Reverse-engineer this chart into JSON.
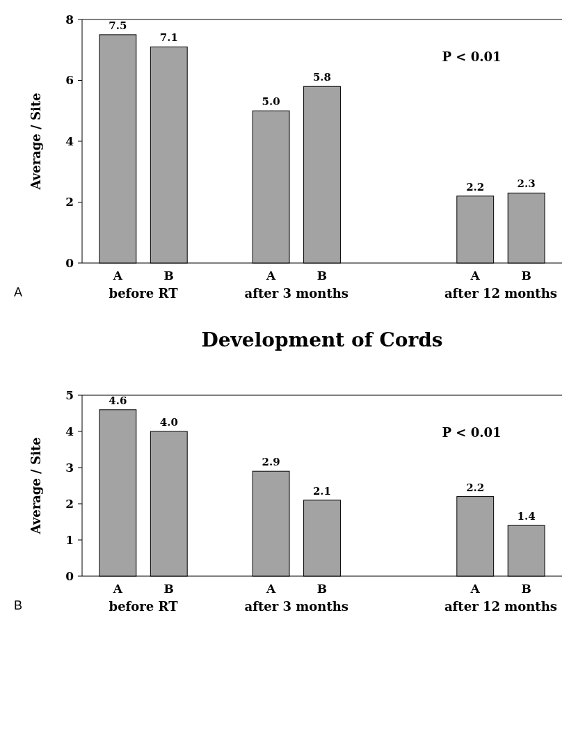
{
  "chart_data": [
    {
      "type": "bar",
      "ylabel": "Average / Site",
      "categories": [
        "A",
        "B",
        null,
        "A",
        "B",
        null,
        null,
        "A",
        "B"
      ],
      "values": [
        7.5,
        7.1,
        null,
        5.0,
        5.8,
        null,
        null,
        2.2,
        2.3
      ],
      "value_labels": [
        "7.5",
        "7.1",
        null,
        "5.0",
        "5.8",
        null,
        null,
        "2.2",
        "2.3"
      ],
      "color": "#a3a3a3",
      "ylim": [
        0,
        8
      ],
      "yticks": [
        0,
        2,
        4,
        6,
        8
      ],
      "annotations": [
        "A",
        "before RT",
        "after 3 months",
        "after 12 months",
        "P < 0.01"
      ]
    },
    {
      "type": "bar",
      "title": "Development of Cords",
      "ylabel": "Average / Site",
      "categories": [
        "A",
        "B",
        null,
        "A",
        "B",
        null,
        null,
        "A",
        "B"
      ],
      "values": [
        4.6,
        4.0,
        null,
        2.9,
        2.1,
        null,
        null,
        2.2,
        1.4
      ],
      "value_labels": [
        "4.6",
        "4.0",
        null,
        "2.9",
        "2.1",
        null,
        null,
        "2.2",
        "1.4"
      ],
      "color": "#a3a3a3",
      "ylim": [
        0,
        5
      ],
      "yticks": [
        0,
        1,
        2,
        3,
        4,
        5
      ],
      "annotations": [
        "B",
        "before RT",
        "after 3 months",
        "after 12 months",
        "P < 0.01"
      ]
    }
  ]
}
